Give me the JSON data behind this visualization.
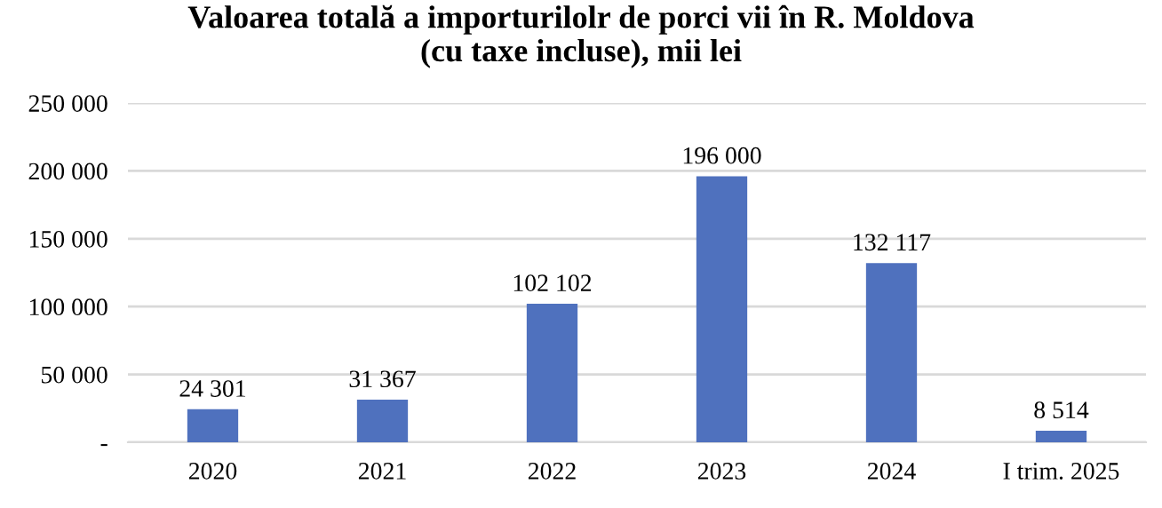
{
  "chart_data": {
    "type": "bar",
    "title": "Valoarea totală a importurilolr de porci vii în R. Moldova\n(cu taxe incluse), mii lei",
    "categories": [
      "2020",
      "2021",
      "2022",
      "2023",
      "2024",
      "I trim. 2025"
    ],
    "values": [
      24301,
      31367,
      102102,
      196000,
      132117,
      8514
    ],
    "value_labels": [
      "24 301",
      "31 367",
      "102 102",
      "196 000",
      "132 117",
      "8 514"
    ],
    "color": "#4f71be",
    "ylim": [
      0,
      250000
    ],
    "yticks": [
      {
        "value": 0,
        "label": "-"
      },
      {
        "value": 50000,
        "label": "50 000"
      },
      {
        "value": 100000,
        "label": "100 000"
      },
      {
        "value": 150000,
        "label": "150 000"
      },
      {
        "value": 200000,
        "label": "200 000"
      },
      {
        "value": 250000,
        "label": "250 000"
      }
    ],
    "grid": "y",
    "legend": false
  }
}
